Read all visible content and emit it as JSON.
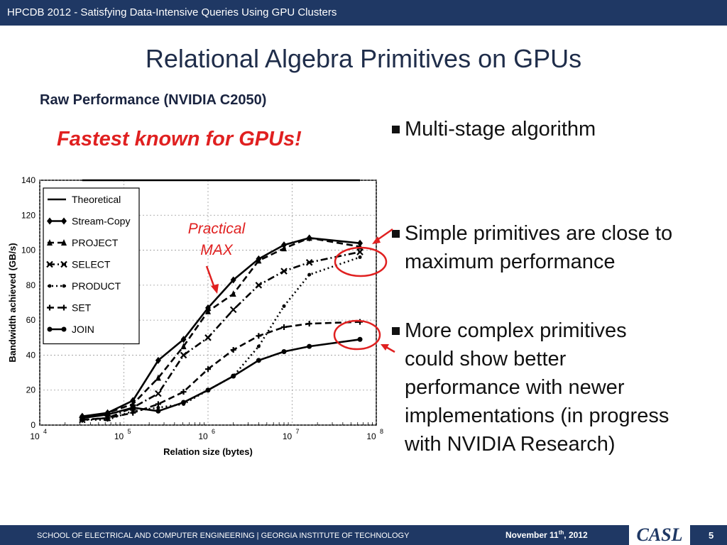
{
  "header": {
    "text": "HPCDB 2012 - Satisfying Data-Intensive Queries Using GPU Clusters"
  },
  "slide": {
    "title": "Relational Algebra Primitives on GPUs",
    "subtitle": "Raw Performance (NVIDIA C2050)",
    "highlight": "Fastest known for GPUs!",
    "annotation_lines": [
      "Practical",
      "MAX"
    ],
    "bullets": [
      {
        "lines": [
          "Multi-stage algorithm"
        ]
      },
      {
        "lines": [
          "Simple primitives are close to",
          "maximum performance"
        ]
      },
      {
        "lines": [
          "More complex primitives",
          "could show better",
          "performance with newer",
          "implementations (in progress",
          "with NVIDIA Research)"
        ]
      }
    ]
  },
  "footer": {
    "left": "SCHOOL OF ELECTRICAL AND COMPUTER ENGINEERING | GEORGIA INSTITUTE OF TECHNOLOGY",
    "date_main": "November 11",
    "date_sup": "th",
    "date_rest": ", 2012",
    "logo": "CASL",
    "page": "5"
  },
  "colors": {
    "bar": "#1f3864",
    "accent_red": "#e02020"
  },
  "chart_data": {
    "type": "line",
    "xscale": "log",
    "xlim": [
      10000,
      100000000
    ],
    "ylim": [
      0,
      140
    ],
    "xlabel": "Relation size (bytes)",
    "ylabel": "Bandwidth achieved (GB/s)",
    "xticks": [
      {
        "base": "10",
        "exp": "4"
      },
      {
        "base": "10",
        "exp": "5"
      },
      {
        "base": "10",
        "exp": "6"
      },
      {
        "base": "10",
        "exp": "7"
      },
      {
        "base": "10",
        "exp": "8"
      }
    ],
    "yticks": [
      "0",
      "20",
      "40",
      "60",
      "80",
      "100",
      "120",
      "140"
    ],
    "legend_position": "top-left",
    "grid": true,
    "x": [
      32000,
      64000,
      128000,
      256000,
      512000,
      1000000,
      2000000,
      4000000,
      8000000,
      16000000,
      64000000
    ],
    "series": [
      {
        "name": "Theoretical",
        "marker": "none",
        "dash": "solid",
        "values": [
          140,
          140,
          140,
          140,
          140,
          140,
          140,
          140,
          140,
          140,
          140
        ]
      },
      {
        "name": "Stream-Copy",
        "marker": "diamond",
        "dash": "solid",
        "values": [
          5,
          7,
          14,
          37,
          49,
          67,
          83,
          95,
          103,
          107,
          104
        ]
      },
      {
        "name": "PROJECT",
        "marker": "triangle",
        "dash": "dashed",
        "values": [
          4,
          7,
          12,
          27,
          45,
          65,
          75,
          94,
          101,
          107,
          102
        ]
      },
      {
        "name": "SELECT",
        "marker": "x",
        "dash": "dashdot",
        "values": [
          3,
          4,
          10,
          18,
          40,
          50,
          66,
          80,
          88,
          93,
          99
        ]
      },
      {
        "name": "PRODUCT",
        "marker": "dot",
        "dash": "dotted",
        "values": [
          3,
          3,
          8,
          10,
          12,
          20,
          28,
          45,
          68,
          86,
          96
        ]
      },
      {
        "name": "SET",
        "marker": "plus",
        "dash": "dashed",
        "values": [
          3,
          4,
          7,
          12,
          19,
          32,
          43,
          51,
          56,
          58,
          59
        ]
      },
      {
        "name": "JOIN",
        "marker": "circle",
        "dash": "solid",
        "values": [
          4,
          6,
          10,
          8,
          13,
          20,
          28,
          37,
          42,
          45,
          49
        ]
      }
    ]
  }
}
